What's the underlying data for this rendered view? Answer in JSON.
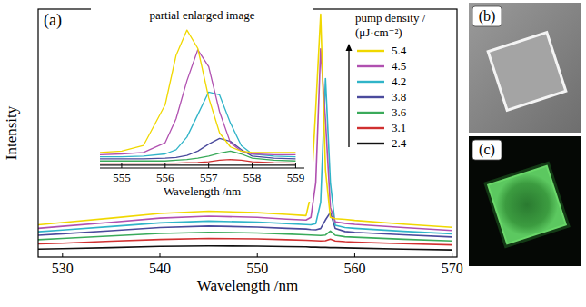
{
  "chart_data": [
    {
      "type": "line",
      "label": "(a)",
      "y_label": "Intensity",
      "x_label": "Wavelength /nm",
      "legend_title": "pump density / (μJ·cm⁻²)",
      "legend": "top-right",
      "tick_labels": "x",
      "xlim": [
        527.5,
        570.5
      ],
      "xticks": [
        530,
        540,
        550,
        560,
        570
      ],
      "ylim": [
        0,
        100
      ],
      "x": [
        527.5,
        530,
        535,
        540,
        545,
        550,
        553,
        555,
        555.5,
        556,
        556.5,
        557,
        557.5,
        558,
        559,
        560,
        565,
        570
      ],
      "series": [
        {
          "name": "5.4",
          "color": "#f0d800",
          "values": [
            13.0,
            13.9,
            15.7,
            17.6,
            18.5,
            17.9,
            17.2,
            16.7,
            25,
            60,
            98,
            35,
            16,
            15.5,
            15.2,
            14.8,
            13.3,
            12.0
          ]
        },
        {
          "name": "4.5",
          "color": "#b050b0",
          "values": [
            11.6,
            12.4,
            14.0,
            15.7,
            16.5,
            16.0,
            15.3,
            14.9,
            16,
            30,
            84,
            55,
            20,
            14.2,
            13.6,
            13.2,
            11.9,
            10.7
          ]
        },
        {
          "name": "4.2",
          "color": "#30b4c8",
          "values": [
            10.2,
            10.9,
            12.3,
            13.8,
            14.5,
            14.1,
            13.5,
            13.1,
            13.0,
            13.5,
            22,
            72,
            30,
            12.8,
            11.9,
            11.6,
            10.4,
            9.4
          ]
        },
        {
          "name": "3.8",
          "color": "#4a4a9c",
          "values": [
            8.8,
            9.4,
            10.6,
            11.9,
            12.5,
            12.1,
            11.6,
            11.3,
            11.1,
            11.0,
            11.5,
            15,
            18,
            11.5,
            10.3,
            10.0,
            9.0,
            8.1
          ]
        },
        {
          "name": "3.6",
          "color": "#3aaa5a",
          "values": [
            7.0,
            7.5,
            8.5,
            9.5,
            10,
            9.7,
            9.3,
            9.0,
            8.9,
            8.8,
            8.7,
            8.9,
            10.5,
            8.8,
            8.2,
            8.0,
            7.2,
            6.5
          ]
        },
        {
          "name": "3.1",
          "color": "#d03030",
          "values": [
            5.3,
            5.6,
            6.4,
            7.1,
            7.5,
            7.3,
            7.0,
            6.8,
            6.7,
            6.6,
            6.5,
            6.6,
            7.2,
            6.5,
            6.2,
            6.0,
            5.4,
            4.9
          ]
        },
        {
          "name": "2.4",
          "color": "#111111",
          "values": [
            3.2,
            3.4,
            3.8,
            4.3,
            4.5,
            4.4,
            4.2,
            4.1,
            4.0,
            4.0,
            3.9,
            3.9,
            3.8,
            3.8,
            3.7,
            3.6,
            3.2,
            2.9
          ]
        }
      ]
    },
    {
      "type": "line",
      "title": "partial enlarged image",
      "x_label": "Wavelength /nm",
      "tick_labels": "x",
      "xlim": [
        554.5,
        559.2
      ],
      "xticks": [
        555,
        556,
        557,
        558,
        559
      ],
      "ylim": [
        0,
        100
      ],
      "x": [
        554.5,
        555,
        555.5,
        556,
        556.25,
        556.5,
        556.75,
        557,
        557.25,
        557.5,
        557.75,
        558,
        558.5,
        559
      ],
      "series": [
        {
          "color": "#f0d800",
          "values": [
            11,
            12,
            16,
            45,
            80,
            98,
            85,
            50,
            25,
            15,
            12,
            11,
            11,
            11
          ]
        },
        {
          "color": "#b050b0",
          "values": [
            9.5,
            10,
            11,
            18,
            35,
            62,
            84,
            72,
            40,
            18,
            12,
            10,
            9.5,
            9.5
          ]
        },
        {
          "color": "#30b4c8",
          "values": [
            8,
            8,
            8.5,
            10,
            13,
            22,
            38,
            54,
            52,
            32,
            16,
            10,
            8.5,
            8
          ]
        },
        {
          "color": "#4a4a9c",
          "values": [
            6.5,
            6.5,
            6.5,
            7,
            7.5,
            9,
            12,
            17,
            21,
            19,
            13,
            8.5,
            7,
            6.5
          ]
        },
        {
          "color": "#3aaa5a",
          "values": [
            5,
            5,
            5,
            5,
            5.5,
            6,
            7,
            8.5,
            10.5,
            12,
            10,
            7,
            5.5,
            5
          ]
        },
        {
          "color": "#d03030",
          "values": [
            3.5,
            3.5,
            3.5,
            3.5,
            3.5,
            3.8,
            4,
            4.5,
            5.5,
            6,
            5.5,
            4.5,
            3.8,
            3.5
          ]
        },
        {
          "color": "#111111",
          "values": [
            2,
            2,
            2,
            2,
            2,
            2,
            2,
            2,
            2,
            2,
            2,
            2,
            2,
            2
          ]
        }
      ]
    }
  ],
  "images": [
    {
      "label": "(b)"
    },
    {
      "label": "(c)"
    }
  ]
}
